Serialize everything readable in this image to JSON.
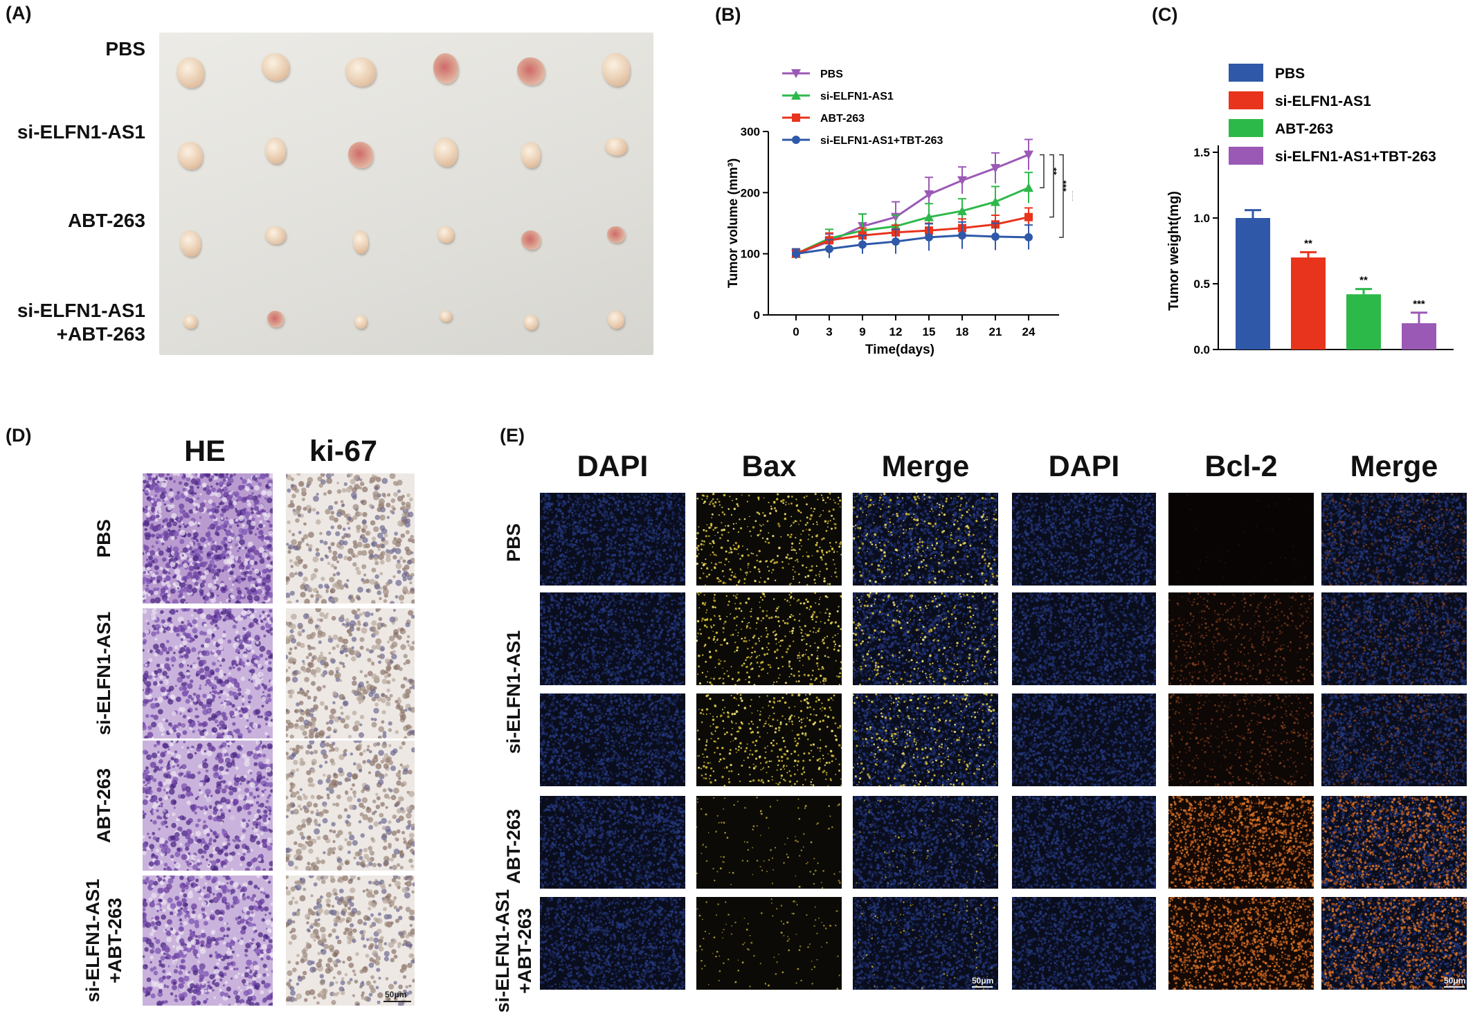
{
  "panels": {
    "a": {
      "label": "(A)",
      "rows": [
        "PBS",
        "si-ELFN1-AS1",
        "ABT-263",
        "si-ELFN1-AS1\n+ABT-263"
      ],
      "row_lines": [
        [
          "PBS"
        ],
        [
          "si-ELFN1-AS1"
        ],
        [
          "ABT-263"
        ],
        [
          "si-ELFN1-AS1",
          "+ABT-263"
        ]
      ]
    },
    "b": {
      "label": "(B)"
    },
    "c": {
      "label": "(C)"
    },
    "d": {
      "label": "(D)",
      "columns": [
        "HE",
        "ki-67"
      ],
      "rows": [
        [
          "PBS"
        ],
        [
          "si-ELFN1-AS1"
        ],
        [
          "ABT-263"
        ],
        [
          "si-ELFN1-AS1",
          "+ABT-263"
        ]
      ],
      "scale_bar": "50μm"
    },
    "e": {
      "label": "(E)",
      "columns": [
        "DAPI",
        "Bax",
        "Merge",
        "DAPI",
        "Bcl-2",
        "Merge"
      ],
      "rows": [
        [
          "PBS"
        ],
        [
          "si-ELFN1-AS1"
        ],
        [
          "ABT-263"
        ],
        [
          "si-ELFN1-AS1",
          "+ABT-263"
        ]
      ],
      "scale_bar": "50μm"
    }
  },
  "chart_data": [
    {
      "panel": "B",
      "type": "line",
      "xlabel": "Time(days)",
      "ylabel": "Tumor volume (mm³)",
      "x": [
        0,
        3,
        9,
        12,
        15,
        18,
        21,
        24
      ],
      "ylim": [
        0,
        300
      ],
      "yticks": [
        0,
        100,
        200,
        300
      ],
      "legend_position": "top-left",
      "series": [
        {
          "name": "PBS",
          "color": "#9b59b6",
          "marker": "triangle-down",
          "values": [
            100,
            120,
            145,
            160,
            197,
            220,
            240,
            262
          ],
          "errors": [
            8,
            12,
            20,
            25,
            28,
            22,
            25,
            25
          ]
        },
        {
          "name": "si-ELFN1-AS1",
          "color": "#2db84a",
          "marker": "triangle-up",
          "values": [
            100,
            125,
            138,
            145,
            160,
            170,
            185,
            208
          ],
          "errors": [
            8,
            15,
            27,
            18,
            22,
            20,
            25,
            25
          ]
        },
        {
          "name": "ABT-263",
          "color": "#e8341c",
          "marker": "square",
          "values": [
            100,
            122,
            130,
            135,
            138,
            142,
            148,
            160
          ],
          "errors": [
            8,
            12,
            12,
            12,
            12,
            15,
            15,
            15
          ]
        },
        {
          "name": "si-ELFN1-AS1+TBT-263",
          "color": "#2f58a8",
          "marker": "circle",
          "values": [
            100,
            108,
            115,
            120,
            127,
            130,
            128,
            127
          ],
          "errors": [
            8,
            15,
            15,
            20,
            22,
            22,
            22,
            20
          ]
        }
      ],
      "significance": [
        "**",
        "***",
        "***"
      ]
    },
    {
      "panel": "C",
      "type": "bar",
      "ylabel": "Tumor weight(mg)",
      "categories": [
        "PBS",
        "si-ELFN1-AS1",
        "ABT-263",
        "si-ELFN1-AS1+TBT-263"
      ],
      "values": [
        1.0,
        0.7,
        0.42,
        0.2
      ],
      "errors": [
        0.06,
        0.04,
        0.04,
        0.08
      ],
      "significance": [
        "",
        "**",
        "**",
        "***"
      ],
      "colors": [
        "#2f58a8",
        "#e8341c",
        "#2db84a",
        "#9b59b6"
      ],
      "ylim": [
        0,
        1.5
      ],
      "yticks": [
        0.0,
        0.5,
        1.0,
        1.5
      ],
      "legend_position": "top"
    }
  ]
}
